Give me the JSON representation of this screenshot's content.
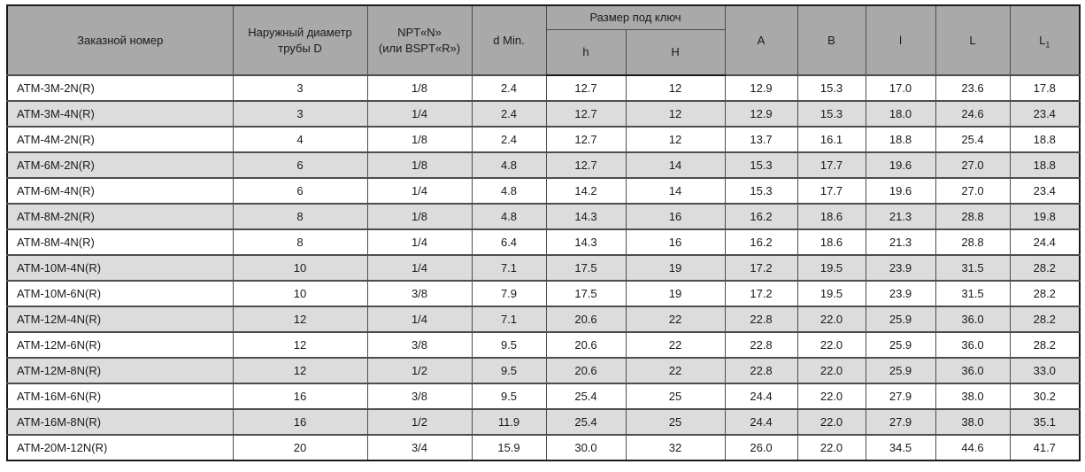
{
  "table": {
    "headers": {
      "order_number": "Заказной номер",
      "outer_diameter": "Наружный диаметр трубы D",
      "thread_line1": "NPT«N»",
      "thread_line2": "(или BSPT«R»)",
      "d_min": "d Min.",
      "wrench_size_group": "Размер под ключ",
      "h_small": "h",
      "h_big": "H",
      "a": "A",
      "b": "B",
      "l_small": "l",
      "l_big": "L",
      "l1_base": "L",
      "l1_sub": "1"
    },
    "rows": [
      {
        "cells": [
          "ATM-3M-2N(R)",
          "3",
          "1/8",
          "2.4",
          "12.7",
          "12",
          "12.9",
          "15.3",
          "17.0",
          "23.6",
          "17.8"
        ]
      },
      {
        "cells": [
          "ATM-3M-4N(R)",
          "3",
          "1/4",
          "2.4",
          "12.7",
          "12",
          "12.9",
          "15.3",
          "18.0",
          "24.6",
          "23.4"
        ]
      },
      {
        "cells": [
          "ATM-4M-2N(R)",
          "4",
          "1/8",
          "2.4",
          "12.7",
          "12",
          "13.7",
          "16.1",
          "18.8",
          "25.4",
          "18.8"
        ]
      },
      {
        "cells": [
          "ATM-6M-2N(R)",
          "6",
          "1/8",
          "4.8",
          "12.7",
          "14",
          "15.3",
          "17.7",
          "19.6",
          "27.0",
          "18.8"
        ]
      },
      {
        "cells": [
          "ATM-6M-4N(R)",
          "6",
          "1/4",
          "4.8",
          "14.2",
          "14",
          "15.3",
          "17.7",
          "19.6",
          "27.0",
          "23.4"
        ]
      },
      {
        "cells": [
          "ATM-8M-2N(R)",
          "8",
          "1/8",
          "4.8",
          "14.3",
          "16",
          "16.2",
          "18.6",
          "21.3",
          "28.8",
          "19.8"
        ]
      },
      {
        "cells": [
          "ATM-8M-4N(R)",
          "8",
          "1/4",
          "6.4",
          "14.3",
          "16",
          "16.2",
          "18.6",
          "21.3",
          "28.8",
          "24.4"
        ]
      },
      {
        "cells": [
          "ATM-10M-4N(R)",
          "10",
          "1/4",
          "7.1",
          "17.5",
          "19",
          "17.2",
          "19.5",
          "23.9",
          "31.5",
          "28.2"
        ]
      },
      {
        "cells": [
          "ATM-10M-6N(R)",
          "10",
          "3/8",
          "7.9",
          "17.5",
          "19",
          "17.2",
          "19.5",
          "23.9",
          "31.5",
          "28.2"
        ]
      },
      {
        "cells": [
          "ATM-12M-4N(R)",
          "12",
          "1/4",
          "7.1",
          "20.6",
          "22",
          "22.8",
          "22.0",
          "25.9",
          "36.0",
          "28.2"
        ]
      },
      {
        "cells": [
          "ATM-12M-6N(R)",
          "12",
          "3/8",
          "9.5",
          "20.6",
          "22",
          "22.8",
          "22.0",
          "25.9",
          "36.0",
          "28.2"
        ]
      },
      {
        "cells": [
          "ATM-12M-8N(R)",
          "12",
          "1/2",
          "9.5",
          "20.6",
          "22",
          "22.8",
          "22.0",
          "25.9",
          "36.0",
          "33.0"
        ]
      },
      {
        "cells": [
          "ATM-16M-6N(R)",
          "16",
          "3/8",
          "9.5",
          "25.4",
          "25",
          "24.4",
          "22.0",
          "27.9",
          "38.0",
          "30.2"
        ]
      },
      {
        "cells": [
          "ATM-16M-8N(R)",
          "16",
          "1/2",
          "11.9",
          "25.4",
          "25",
          "24.4",
          "22.0",
          "27.9",
          "38.0",
          "35.1"
        ]
      },
      {
        "cells": [
          "ATM-20M-12N(R)",
          "20",
          "3/4",
          "15.9",
          "30.0",
          "32",
          "26.0",
          "22.0",
          "34.5",
          "44.6",
          "41.7"
        ]
      }
    ],
    "colors": {
      "header_bg": "#a9a9a9",
      "row_alt_bg": "#dcdcdc",
      "border": "#4d4d4d",
      "outer_border": "#1a1a1a"
    }
  }
}
